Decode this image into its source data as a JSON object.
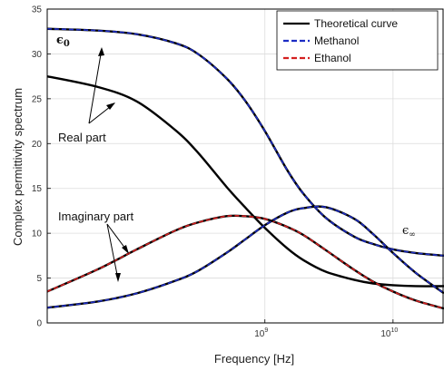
{
  "chart_data": {
    "type": "line",
    "title": "",
    "xlabel": "Frequency [Hz]",
    "ylabel": "Complex permittivity spectrum",
    "xscale": "log",
    "xlim": [
      20000000.0,
      25000000000.0
    ],
    "ylim": [
      0,
      35
    ],
    "xticks": [
      {
        "value": 1000000000.0,
        "base": "10",
        "exp": "9"
      },
      {
        "value": 10000000000.0,
        "base": "10",
        "exp": "10"
      }
    ],
    "yticks": [
      0,
      5,
      10,
      15,
      20,
      25,
      30,
      35
    ],
    "grid": true,
    "legend_position": "top-right",
    "series": [
      {
        "name": "Theoretical curve",
        "color": "#000000",
        "dash": "solid",
        "x": [
          20000000.0,
          50000000.0,
          100000000.0,
          200000000.0,
          300000000.0,
          500000000.0,
          700000000.0,
          1000000000.0,
          1500000000.0,
          2000000000.0,
          3000000000.0,
          5000000000.0,
          7000000000.0,
          10000000000.0,
          15000000000.0,
          25000000000.0
        ],
        "y": [
          27.5,
          26.3,
          24.7,
          21.5,
          19.0,
          15.2,
          12.9,
          10.6,
          8.3,
          7.0,
          5.7,
          4.8,
          4.4,
          4.2,
          4.1,
          4.1
        ]
      },
      {
        "name": "Theoretical curve",
        "color": "#000000",
        "dash": "solid",
        "x": [
          20000000.0,
          50000000.0,
          100000000.0,
          200000000.0,
          300000000.0,
          500000000.0,
          700000000.0,
          1000000000.0,
          1500000000.0,
          2000000000.0,
          3000000000.0,
          5000000000.0,
          7000000000.0,
          10000000000.0,
          15000000000.0,
          25000000000.0
        ],
        "y": [
          3.5,
          6.0,
          8.2,
          10.3,
          11.2,
          11.9,
          11.9,
          11.6,
          10.7,
          9.8,
          8.1,
          5.9,
          4.6,
          3.5,
          2.5,
          1.6
        ]
      },
      {
        "name": "Ethanol",
        "color": "#d42020",
        "dash": "dashed",
        "x": [
          20000000.0,
          50000000.0,
          100000000.0,
          200000000.0,
          300000000.0,
          500000000.0,
          700000000.0,
          1000000000.0,
          1500000000.0,
          2000000000.0,
          3000000000.0,
          5000000000.0,
          7000000000.0,
          10000000000.0,
          15000000000.0,
          25000000000.0
        ],
        "y": [
          3.5,
          6.0,
          8.2,
          10.3,
          11.2,
          11.9,
          11.9,
          11.6,
          10.7,
          9.8,
          8.1,
          5.9,
          4.6,
          3.5,
          2.5,
          1.6
        ]
      },
      {
        "name": "Theoretical curve",
        "color": "#000000",
        "dash": "solid",
        "x": [
          20000000.0,
          50000000.0,
          100000000.0,
          200000000.0,
          300000000.0,
          500000000.0,
          700000000.0,
          1000000000.0,
          1500000000.0,
          2000000000.0,
          3000000000.0,
          5000000000.0,
          7000000000.0,
          10000000000.0,
          15000000000.0,
          25000000000.0
        ],
        "y": [
          32.8,
          32.6,
          32.2,
          31.2,
          30.0,
          27.3,
          24.8,
          21.4,
          17.0,
          14.4,
          11.7,
          9.6,
          8.8,
          8.2,
          7.8,
          7.5
        ]
      },
      {
        "name": "Methanol",
        "color": "#1c2cc4",
        "dash": "dashed",
        "x": [
          20000000.0,
          50000000.0,
          100000000.0,
          200000000.0,
          300000000.0,
          500000000.0,
          700000000.0,
          1000000000.0,
          1500000000.0,
          2000000000.0,
          3000000000.0,
          5000000000.0,
          7000000000.0,
          10000000000.0,
          15000000000.0,
          25000000000.0
        ],
        "y": [
          32.8,
          32.6,
          32.2,
          31.2,
          30.0,
          27.3,
          24.8,
          21.4,
          17.0,
          14.4,
          11.7,
          9.6,
          8.8,
          8.2,
          7.8,
          7.5
        ]
      },
      {
        "name": "Theoretical curve",
        "color": "#000000",
        "dash": "solid",
        "x": [
          20000000.0,
          50000000.0,
          100000000.0,
          200000000.0,
          300000000.0,
          500000000.0,
          700000000.0,
          1000000000.0,
          1500000000.0,
          2000000000.0,
          3000000000.0,
          5000000000.0,
          7000000000.0,
          10000000000.0,
          15000000000.0,
          25000000000.0
        ],
        "y": [
          1.7,
          2.4,
          3.3,
          4.7,
          5.8,
          7.8,
          9.3,
          10.9,
          12.3,
          12.8,
          12.9,
          11.6,
          9.9,
          7.8,
          5.6,
          3.3
        ]
      },
      {
        "name": "Methanol",
        "color": "#1c2cc4",
        "dash": "dashed",
        "x": [
          20000000.0,
          50000000.0,
          100000000.0,
          200000000.0,
          300000000.0,
          500000000.0,
          700000000.0,
          1000000000.0,
          1500000000.0,
          2000000000.0,
          3000000000.0,
          5000000000.0,
          7000000000.0,
          10000000000.0,
          15000000000.0,
          25000000000.0
        ],
        "y": [
          1.7,
          2.4,
          3.3,
          4.7,
          5.8,
          7.8,
          9.3,
          10.9,
          12.3,
          12.8,
          12.9,
          11.6,
          9.9,
          7.8,
          5.6,
          3.3
        ]
      }
    ],
    "legend": [
      {
        "label": "Theoretical curve",
        "color": "#000000",
        "dash": "solid"
      },
      {
        "label": "Methanol",
        "color": "#1c2cc4",
        "dash": "dashed"
      },
      {
        "label": "Ethanol",
        "color": "#d42020",
        "dash": "dashed"
      }
    ],
    "annotations": {
      "eps0": {
        "symbol": "ϵ",
        "sub": "0"
      },
      "epsinf": {
        "symbol": "ϵ",
        "sub": "∞"
      },
      "real": "Real part",
      "imag": "Imaginary part"
    }
  }
}
